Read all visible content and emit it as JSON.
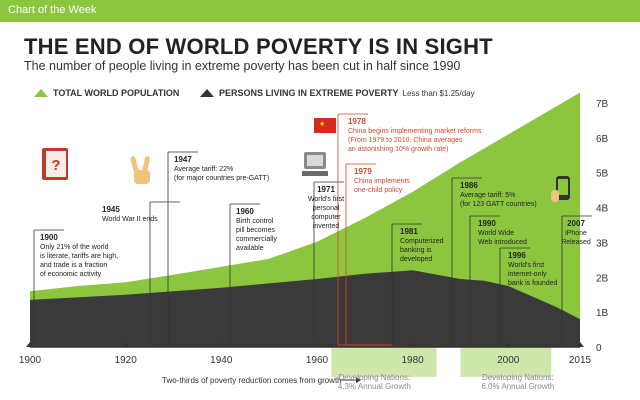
{
  "header": {
    "label": "Chart of the Week"
  },
  "legend": {
    "population": "TOTAL WORLD POPULATION",
    "poverty": "PERSONS LIVING IN EXTREME POVERTY",
    "poverty_note": "Less than $1.25/day"
  },
  "colors": {
    "accent": "#8cc63f",
    "accent_light": "#cfe6ad",
    "poverty": "#3a3a3a",
    "event_red": "#d2472c"
  },
  "chart_data": {
    "type": "area",
    "title": "THE END OF WORLD POVERTY IS IN SIGHT",
    "subtitle": "The number of people living in extreme poverty has been cut in half since 1990",
    "xlim": [
      1900,
      2015
    ],
    "ylim": [
      0,
      7
    ],
    "x_ticks": [
      "1900",
      "1920",
      "1940",
      "1960",
      "1980",
      "2000",
      "2015"
    ],
    "x_tick_values": [
      1900,
      1920,
      1940,
      1960,
      1980,
      2000,
      2015
    ],
    "y_ticks": [
      "0",
      "1B",
      "2B",
      "3B",
      "4B",
      "5B",
      "6B",
      "7B"
    ],
    "y_tick_values": [
      0,
      1,
      2,
      3,
      4,
      5,
      6,
      7
    ],
    "series": [
      {
        "name": "TOTAL WORLD POPULATION",
        "x": [
          1900,
          1910,
          1920,
          1930,
          1940,
          1950,
          1960,
          1970,
          1980,
          1990,
          2000,
          2010,
          2015
        ],
        "values": [
          1.6,
          1.75,
          1.86,
          2.07,
          2.3,
          2.53,
          3.02,
          3.7,
          4.45,
          5.3,
          6.1,
          6.9,
          7.3
        ]
      },
      {
        "name": "PERSONS LIVING IN EXTREME POVERTY",
        "x": [
          1900,
          1920,
          1940,
          1960,
          1970,
          1980,
          1990,
          1995,
          2000,
          2005,
          2010,
          2015
        ],
        "values": [
          1.35,
          1.5,
          1.7,
          1.95,
          2.1,
          2.2,
          1.95,
          1.9,
          1.75,
          1.45,
          1.15,
          0.8
        ]
      }
    ],
    "events": [
      {
        "year": 1900,
        "lines": [
          "1900",
          "Only 21% of the world",
          "is literate, tariffs are high,",
          "and trade is a fraction",
          "of economic activity"
        ]
      },
      {
        "year": 1945,
        "lines": [
          "1945",
          "World War II ends"
        ]
      },
      {
        "year": 1947,
        "lines": [
          "1947",
          "Average tariff: 22%",
          "(for major countries pre-GATT)"
        ]
      },
      {
        "year": 1960,
        "lines": [
          "1960",
          "Birth control",
          "pill becomes",
          "commercially",
          "available"
        ]
      },
      {
        "year": 1971,
        "lines": [
          "1971",
          "World's first",
          "personal",
          "computer",
          "invented"
        ]
      },
      {
        "year": 1978,
        "lines": [
          "1978",
          "China begins implementing market reforms",
          "(From 1979 to 2010, China averages",
          "an astonishing 10% growth rate)"
        ]
      },
      {
        "year": 1979,
        "lines": [
          "1979",
          "China implements",
          "one-child policy"
        ]
      },
      {
        "year": 1981,
        "lines": [
          "1981",
          "Computerized",
          "banking is",
          "developed"
        ]
      },
      {
        "year": 1986,
        "lines": [
          "1986",
          "Average tariff: 5%",
          "(for 123 GATT countries)"
        ]
      },
      {
        "year": 1990,
        "lines": [
          "1990",
          "World Wide",
          "Web introduced"
        ]
      },
      {
        "year": 1996,
        "lines": [
          "1996",
          "World's first",
          "internet-only",
          "bank is founded"
        ]
      },
      {
        "year": 2007,
        "lines": [
          "2007",
          "iPhone",
          "Released"
        ]
      }
    ],
    "footer": {
      "note": "Two-thirds of poverty reduction comes from growth",
      "dev1_label": "Developing Nations:",
      "dev1_value": "4.3% Annual Growth",
      "dev2_label": "Developing Nations:",
      "dev2_value": "6.0% Annual Growth"
    }
  }
}
